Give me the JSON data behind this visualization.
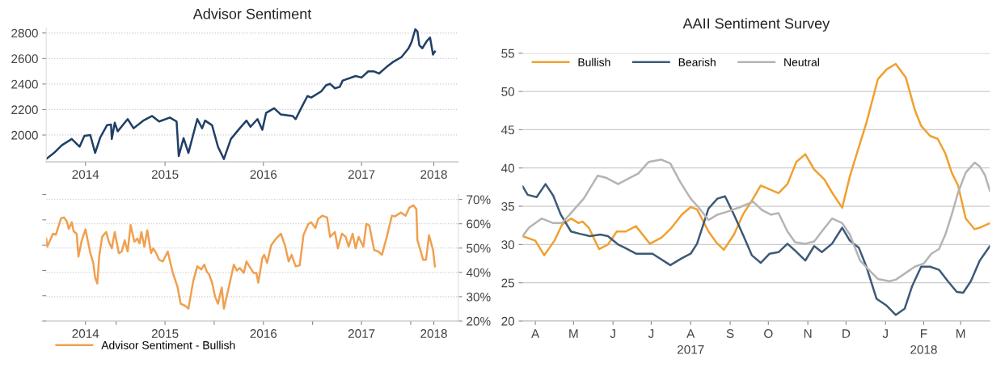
{
  "chart_data": [
    {
      "type": "line",
      "title": "Advisor Sentiment",
      "xlim": [
        "2014-04-16",
        "2018-06-27"
      ],
      "xticks": [
        {
          "value": "2014-09-09",
          "label": "2014"
        },
        {
          "value": "2015-07-02",
          "label": "2015"
        },
        {
          "value": "2016-07-02",
          "label": "2016"
        },
        {
          "value": "2017-07-02",
          "label": "2017"
        },
        {
          "value": "2018-03-28",
          "label": "2018"
        }
      ],
      "ylim": [
        1790,
        2840
      ],
      "yticks": [
        2000,
        2200,
        2400,
        2600,
        2800
      ],
      "grid": "y",
      "series": [
        {
          "color": "#1f3f66",
          "x": [
            "2014-04-16",
            "2014-05-15",
            "2014-06-13",
            "2014-07-20",
            "2014-08-18",
            "2014-09-05",
            "2014-09-27",
            "2014-10-15",
            "2014-11-03",
            "2014-11-28",
            "2014-12-13",
            "2014-12-16",
            "2014-12-27",
            "2015-01-07",
            "2015-02-13",
            "2015-03-07",
            "2015-04-12",
            "2015-05-15",
            "2015-06-10",
            "2015-07-20",
            "2015-08-14",
            "2015-08-22",
            "2015-09-09",
            "2015-09-27",
            "2015-10-30",
            "2015-11-17",
            "2015-11-28",
            "2015-12-24",
            "2016-01-15",
            "2016-02-06",
            "2016-03-03",
            "2016-04-05",
            "2016-04-30",
            "2016-05-15",
            "2016-06-10",
            "2016-06-28",
            "2016-07-12",
            "2016-08-11",
            "2016-09-05",
            "2016-10-19",
            "2016-10-30",
            "2016-11-25",
            "2016-12-13",
            "2016-12-27",
            "2017-02-02",
            "2017-02-20",
            "2017-03-07",
            "2017-03-25",
            "2017-04-12",
            "2017-04-23",
            "2017-06-10",
            "2017-07-02",
            "2017-07-27",
            "2017-08-18",
            "2017-09-05",
            "2017-10-04",
            "2017-10-26",
            "2017-11-28",
            "2017-12-24",
            "2018-01-04",
            "2018-01-18",
            "2018-01-26",
            "2018-02-02",
            "2018-02-13",
            "2018-03-03",
            "2018-03-14",
            "2018-03-25",
            "2018-04-01"
          ],
          "values": [
            1812,
            1860,
            1920,
            1969,
            1908,
            1993,
            2000,
            1860,
            1981,
            2077,
            2082,
            1969,
            2096,
            2029,
            2125,
            2053,
            2113,
            2149,
            2106,
            2137,
            2106,
            1836,
            1976,
            1860,
            2125,
            2053,
            2113,
            2077,
            1908,
            1812,
            1969,
            2053,
            2113,
            2065,
            2125,
            2041,
            2173,
            2210,
            2161,
            2149,
            2125,
            2234,
            2306,
            2294,
            2342,
            2390,
            2402,
            2366,
            2378,
            2427,
            2463,
            2451,
            2499,
            2499,
            2482,
            2535,
            2571,
            2612,
            2680,
            2728,
            2829,
            2812,
            2704,
            2680,
            2740,
            2764,
            2631,
            2655
          ]
        }
      ]
    },
    {
      "type": "line",
      "xlim": [
        "2014-04-16",
        "2018-06-27"
      ],
      "xticks": [
        {
          "value": "2014-09-09",
          "label": "2014"
        },
        {
          "value": "2015-01-01",
          "label": null
        },
        {
          "value": "2015-07-02",
          "label": "2015"
        },
        {
          "value": "2016-01-01",
          "label": null
        },
        {
          "value": "2016-07-02",
          "label": "2016"
        },
        {
          "value": "2017-01-01",
          "label": null
        },
        {
          "value": "2017-07-02",
          "label": "2017"
        },
        {
          "value": "2018-01-01",
          "label": null
        },
        {
          "value": "2018-03-28",
          "label": "2018"
        }
      ],
      "y2lim": [
        20,
        72
      ],
      "y2ticks": [
        {
          "value": 20,
          "label": "20%"
        },
        {
          "value": 30,
          "label": "30%"
        },
        {
          "value": 40,
          "label": "40%"
        },
        {
          "value": 50,
          "label": "50%"
        },
        {
          "value": 60,
          "label": "60%"
        },
        {
          "value": 70,
          "label": "70%"
        }
      ],
      "grid": "y",
      "legend": "bottom",
      "series": [
        {
          "name": "Advisor Sentiment - Bullish",
          "color": "#f0a050",
          "axis": "y2",
          "x": [
            "2014-04-16",
            "2014-04-20",
            "2014-05-11",
            "2014-05-22",
            "2014-06-10",
            "2014-06-21",
            "2014-07-02",
            "2014-07-09",
            "2014-07-20",
            "2014-07-27",
            "2014-08-07",
            "2014-08-14",
            "2014-08-25",
            "2014-09-09",
            "2014-09-27",
            "2014-10-08",
            "2014-10-15",
            "2014-10-23",
            "2014-10-30",
            "2014-11-10",
            "2014-11-25",
            "2014-12-05",
            "2014-12-16",
            "2014-12-27",
            "2015-01-11",
            "2015-01-22",
            "2015-02-02",
            "2015-02-13",
            "2015-02-24",
            "2015-03-10",
            "2015-03-21",
            "2015-03-29",
            "2015-04-05",
            "2015-04-16",
            "2015-04-27",
            "2015-05-11",
            "2015-05-19",
            "2015-05-30",
            "2015-06-10",
            "2015-06-24",
            "2015-07-12",
            "2015-07-31",
            "2015-08-18",
            "2015-08-29",
            "2015-09-13",
            "2015-09-27",
            "2015-10-15",
            "2015-10-30",
            "2015-11-14",
            "2015-11-25",
            "2015-12-05",
            "2015-12-13",
            "2015-12-24",
            "2016-01-04",
            "2016-01-15",
            "2016-01-29",
            "2016-02-06",
            "2016-02-24",
            "2016-03-14",
            "2016-03-25",
            "2016-04-05",
            "2016-04-20",
            "2016-04-30",
            "2016-05-11",
            "2016-05-26",
            "2016-06-06",
            "2016-06-13",
            "2016-06-28",
            "2016-07-05",
            "2016-07-16",
            "2016-07-31",
            "2016-08-18",
            "2016-09-05",
            "2016-09-20",
            "2016-10-04",
            "2016-10-15",
            "2016-10-30",
            "2016-11-14",
            "2016-11-28",
            "2016-12-16",
            "2016-12-27",
            "2017-01-11",
            "2017-01-22",
            "2017-02-06",
            "2017-02-24",
            "2017-03-07",
            "2017-03-25",
            "2017-04-05",
            "2017-04-20",
            "2017-05-04",
            "2017-05-15",
            "2017-05-30",
            "2017-06-10",
            "2017-06-21",
            "2017-07-09",
            "2017-07-20",
            "2017-07-31",
            "2017-08-18",
            "2017-09-02",
            "2017-09-16",
            "2017-10-04",
            "2017-10-23",
            "2017-11-03",
            "2017-11-25",
            "2017-12-13",
            "2017-12-27",
            "2018-01-11",
            "2018-01-22",
            "2018-01-26",
            "2018-02-06",
            "2018-02-16",
            "2018-02-27",
            "2018-03-10",
            "2018-03-25",
            "2018-04-01"
          ],
          "values": [
            53.9,
            50.6,
            55.9,
            55.5,
            62.2,
            62.6,
            60.9,
            57.9,
            60.6,
            56.9,
            55.9,
            46.5,
            52.6,
            57.7,
            47.9,
            43.9,
            37.8,
            35.4,
            46.5,
            54.6,
            56.6,
            52.6,
            49.9,
            56.6,
            47.9,
            48.6,
            53.2,
            48.6,
            59.5,
            52.6,
            53.9,
            51.9,
            56.6,
            50.6,
            57.3,
            47.9,
            49.9,
            47.9,
            45.2,
            44.5,
            48.6,
            39.8,
            33.8,
            27.1,
            26.4,
            25.1,
            36.5,
            42.5,
            41.2,
            43.2,
            40.2,
            39.2,
            35.8,
            30.1,
            27.1,
            33.8,
            25.1,
            33.8,
            43.2,
            40.8,
            41.8,
            39.8,
            44.5,
            42.5,
            39.8,
            39.8,
            35.8,
            45.9,
            47.2,
            43.9,
            51.2,
            53.9,
            55.9,
            51.2,
            44.5,
            47.2,
            42.5,
            42.9,
            55.3,
            59.9,
            60.6,
            58.2,
            62.0,
            63.3,
            62.6,
            54.6,
            56.6,
            49.9,
            55.9,
            54.6,
            50.6,
            55.9,
            49.9,
            54.6,
            50.6,
            59.9,
            59.3,
            49.2,
            48.6,
            47.2,
            54.6,
            63.3,
            63.0,
            64.6,
            63.3,
            66.6,
            67.6,
            66.0,
            53.2,
            49.2,
            45.2,
            45.2,
            55.3,
            49.2,
            42.5
          ]
        }
      ]
    },
    {
      "type": "line",
      "title": "AAII Sentiment Survey",
      "xlim": [
        "2017-04-06",
        "2018-04-08"
      ],
      "xticks": [
        {
          "value": "2017-04-16",
          "label": "A"
        },
        {
          "value": "2017-05-16",
          "label": "M"
        },
        {
          "value": "2017-06-16",
          "label": "J"
        },
        {
          "value": "2017-07-16",
          "label": "J"
        },
        {
          "value": "2017-08-16",
          "label": "A\n2017"
        },
        {
          "value": "2017-09-16",
          "label": "S"
        },
        {
          "value": "2017-10-16",
          "label": "O"
        },
        {
          "value": "2017-11-16",
          "label": "N"
        },
        {
          "value": "2017-12-16",
          "label": "D"
        },
        {
          "value": "2018-01-16",
          "label": "J"
        },
        {
          "value": "2018-02-15",
          "label": "F\n2018"
        },
        {
          "value": "2018-03-16",
          "label": "M"
        }
      ],
      "ylim": [
        20,
        55
      ],
      "yticks": [
        20,
        25,
        30,
        35,
        40,
        45,
        50,
        55
      ],
      "grid": "y",
      "legend": "top left",
      "series": [
        {
          "name": "Bullish",
          "color": "#f0a030",
          "x": [
            "2017-04-06",
            "2017-04-16",
            "2017-04-23",
            "2017-05-01",
            "2017-05-07",
            "2017-05-14",
            "2017-05-20",
            "2017-05-23",
            "2017-05-28",
            "2017-06-05",
            "2017-06-12",
            "2017-06-19",
            "2017-06-26",
            "2017-07-04",
            "2017-07-15",
            "2017-07-24",
            "2017-07-31",
            "2017-08-09",
            "2017-08-16",
            "2017-08-21",
            "2017-08-30",
            "2017-09-05",
            "2017-09-11",
            "2017-09-19",
            "2017-09-26",
            "2017-10-04",
            "2017-10-10",
            "2017-10-17",
            "2017-10-24",
            "2017-10-31",
            "2017-11-07",
            "2017-11-14",
            "2017-11-21",
            "2017-11-29",
            "2017-12-05",
            "2017-12-13",
            "2017-12-19",
            "2017-12-26",
            "2018-01-01",
            "2018-01-10",
            "2018-01-17",
            "2018-01-24",
            "2018-02-01",
            "2018-02-08",
            "2018-02-13",
            "2018-02-20",
            "2018-02-26",
            "2018-03-04",
            "2018-03-09",
            "2018-03-14",
            "2018-03-20",
            "2018-03-27",
            "2018-03-31",
            "2018-04-08"
          ],
          "values": [
            31.1,
            30.5,
            28.6,
            30.5,
            32.6,
            33.4,
            32.8,
            33.0,
            32.2,
            29.4,
            30.0,
            31.7,
            31.7,
            32.4,
            30.1,
            30.9,
            32.0,
            33.9,
            34.9,
            34.6,
            31.7,
            30.3,
            29.3,
            31.3,
            33.9,
            36.0,
            37.7,
            37.2,
            36.7,
            37.9,
            40.8,
            41.8,
            39.8,
            38.5,
            36.8,
            34.8,
            38.9,
            42.7,
            45.9,
            51.6,
            52.9,
            53.6,
            51.8,
            47.6,
            45.5,
            44.2,
            43.8,
            41.9,
            39.4,
            37.7,
            33.4,
            32.0,
            32.2,
            32.8
          ]
        },
        {
          "name": "Bearish",
          "color": "#3d5a78",
          "x": [
            "2017-04-06",
            "2017-04-10",
            "2017-04-17",
            "2017-04-24",
            "2017-04-30",
            "2017-05-06",
            "2017-05-14",
            "2017-05-21",
            "2017-05-29",
            "2017-06-06",
            "2017-06-12",
            "2017-06-20",
            "2017-06-25",
            "2017-07-04",
            "2017-07-17",
            "2017-07-31",
            "2017-08-09",
            "2017-08-16",
            "2017-08-21",
            "2017-08-30",
            "2017-09-06",
            "2017-09-12",
            "2017-09-19",
            "2017-09-26",
            "2017-10-03",
            "2017-10-10",
            "2017-10-17",
            "2017-10-24",
            "2017-10-31",
            "2017-11-06",
            "2017-11-14",
            "2017-11-21",
            "2017-11-27",
            "2017-12-05",
            "2017-12-13",
            "2017-12-19",
            "2017-12-26",
            "2018-01-01",
            "2018-01-09",
            "2018-01-17",
            "2018-01-24",
            "2018-01-31",
            "2018-02-06",
            "2018-02-13",
            "2018-02-20",
            "2018-02-27",
            "2018-03-06",
            "2018-03-13",
            "2018-03-18",
            "2018-03-24",
            "2018-03-31",
            "2018-04-08"
          ],
          "values": [
            37.6,
            36.5,
            36.2,
            37.9,
            36.4,
            33.9,
            31.7,
            31.4,
            31.1,
            31.3,
            31.1,
            30.0,
            29.6,
            28.8,
            28.8,
            27.3,
            28.2,
            28.8,
            30.1,
            34.7,
            36.0,
            36.3,
            33.9,
            31.3,
            28.6,
            27.6,
            28.8,
            29.0,
            30.1,
            29.2,
            27.9,
            29.8,
            29.0,
            30.1,
            32.2,
            30.5,
            29.6,
            27.1,
            22.9,
            22.0,
            20.8,
            21.6,
            24.6,
            27.1,
            27.1,
            26.7,
            25.2,
            23.8,
            23.7,
            25.2,
            27.9,
            29.8
          ]
        },
        {
          "name": "Neutral",
          "color": "#b4b4b4",
          "x": [
            "2017-04-06",
            "2017-04-11",
            "2017-04-21",
            "2017-04-30",
            "2017-05-07",
            "2017-05-15",
            "2017-05-24",
            "2017-06-04",
            "2017-06-11",
            "2017-06-20",
            "2017-06-29",
            "2017-07-06",
            "2017-07-14",
            "2017-07-24",
            "2017-07-31",
            "2017-08-08",
            "2017-08-16",
            "2017-08-22",
            "2017-08-30",
            "2017-09-06",
            "2017-09-14",
            "2017-09-24",
            "2017-10-04",
            "2017-10-11",
            "2017-10-18",
            "2017-10-24",
            "2017-10-31",
            "2017-11-06",
            "2017-11-14",
            "2017-11-21",
            "2017-11-27",
            "2017-12-05",
            "2017-12-13",
            "2017-12-19",
            "2017-12-27",
            "2018-01-04",
            "2018-01-10",
            "2018-01-19",
            "2018-01-24",
            "2018-02-01",
            "2018-02-08",
            "2018-02-15",
            "2018-02-21",
            "2018-02-27",
            "2018-03-04",
            "2018-03-09",
            "2018-03-14",
            "2018-03-20",
            "2018-03-27",
            "2018-03-31",
            "2018-04-04",
            "2018-04-08"
          ],
          "values": [
            31.1,
            32.2,
            33.4,
            32.8,
            32.8,
            34.3,
            36.0,
            39.0,
            38.7,
            37.9,
            38.7,
            39.3,
            40.8,
            41.1,
            40.6,
            38.1,
            36.0,
            34.9,
            33.2,
            33.9,
            34.3,
            34.9,
            35.6,
            34.5,
            33.9,
            34.1,
            31.7,
            30.3,
            30.1,
            30.4,
            31.7,
            33.4,
            32.8,
            31.3,
            27.9,
            26.5,
            25.5,
            25.2,
            25.4,
            26.3,
            27.1,
            27.5,
            28.8,
            29.4,
            31.3,
            33.9,
            36.8,
            39.4,
            40.7,
            40.2,
            39.1,
            37.0
          ]
        }
      ]
    }
  ]
}
